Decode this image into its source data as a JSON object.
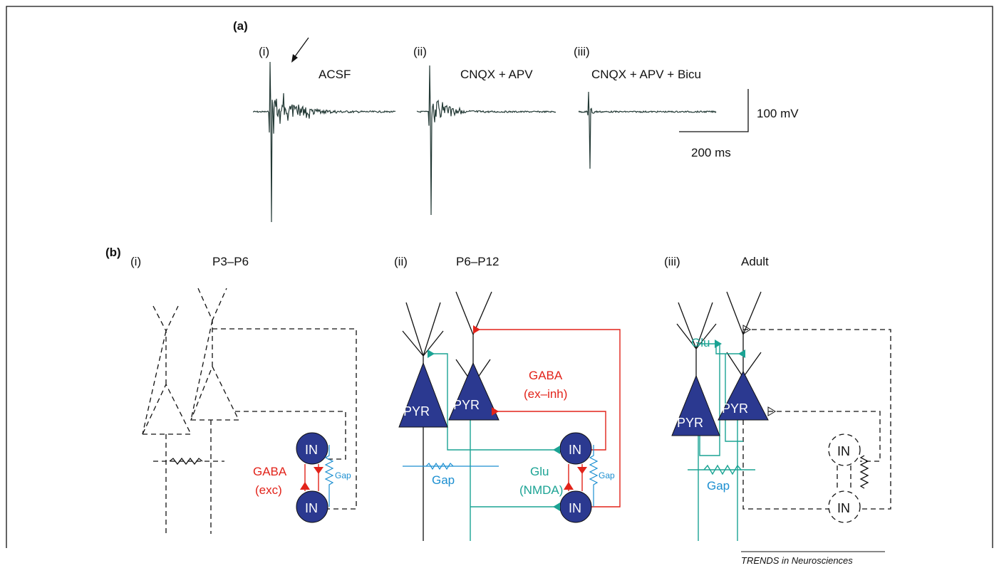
{
  "panel_a": {
    "label": "(a)",
    "traces": [
      {
        "label": "(i)",
        "condition": "ACSF"
      },
      {
        "label": "(ii)",
        "condition": "CNQX + APV"
      },
      {
        "label": "(iii)",
        "condition": "CNQX + APV + Bicu"
      }
    ],
    "scale_bar": {
      "voltage": "100  mV",
      "time": "200  ms"
    }
  },
  "panel_b": {
    "label": "(b)",
    "stages": [
      {
        "label": "(i)",
        "age": "P3–P6",
        "interneurons": [
          "IN",
          "IN"
        ],
        "synapse": [
          "GABA",
          "(exc)"
        ],
        "gap": "Gap"
      },
      {
        "label": "(ii)",
        "age": "P6–P12",
        "pyramids": [
          "PYR",
          "PYR"
        ],
        "interneurons": [
          "IN",
          "IN"
        ],
        "gaba": [
          "GABA",
          "(ex–inh)"
        ],
        "glu": [
          "Glu",
          "(NMDA)"
        ],
        "gap": [
          "Gap",
          "Gap"
        ]
      },
      {
        "label": "(iii)",
        "age": "Adult",
        "pyramids": [
          "PYR",
          "PYR"
        ],
        "interneurons": [
          "IN",
          "IN"
        ],
        "glu": "Glu",
        "gap": "Gap"
      }
    ]
  },
  "footer": "TRENDS in Neurosciences"
}
